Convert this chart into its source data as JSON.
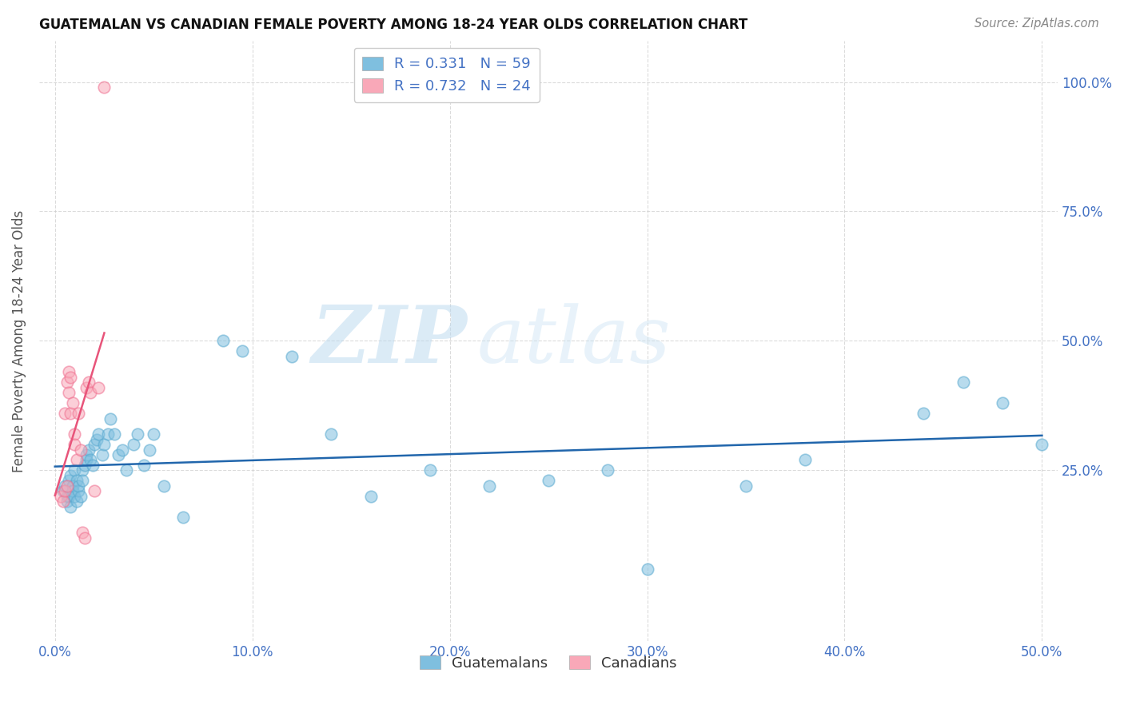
{
  "title": "GUATEMALAN VS CANADIAN FEMALE POVERTY AMONG 18-24 YEAR OLDS CORRELATION CHART",
  "source": "Source: ZipAtlas.com",
  "ylabel": "Female Poverty Among 18-24 Year Olds",
  "ytick_labels": [
    "100.0%",
    "75.0%",
    "50.0%",
    "25.0%"
  ],
  "ytick_values": [
    1.0,
    0.75,
    0.5,
    0.25
  ],
  "xtick_labels": [
    "0.0%",
    "10.0%",
    "20.0%",
    "30.0%",
    "40.0%",
    "50.0%"
  ],
  "xtick_values": [
    0.0,
    0.1,
    0.2,
    0.3,
    0.4,
    0.5
  ],
  "watermark_zip": "ZIP",
  "watermark_atlas": "atlas",
  "guatemalan_color": "#7fbfdf",
  "guatemalan_edge": "#5aaad0",
  "canadian_color": "#f9a8b8",
  "canadian_edge": "#f07090",
  "guatemalan_line_color": "#2166ac",
  "canadian_line_color": "#e8547a",
  "background_color": "#ffffff",
  "grid_color": "#cccccc",
  "guatemalans_x": [
    0.004,
    0.005,
    0.006,
    0.006,
    0.007,
    0.007,
    0.008,
    0.008,
    0.009,
    0.009,
    0.01,
    0.01,
    0.011,
    0.011,
    0.012,
    0.012,
    0.013,
    0.014,
    0.014,
    0.015,
    0.016,
    0.016,
    0.017,
    0.018,
    0.019,
    0.02,
    0.021,
    0.022,
    0.024,
    0.025,
    0.027,
    0.028,
    0.03,
    0.032,
    0.034,
    0.036,
    0.04,
    0.042,
    0.045,
    0.048,
    0.05,
    0.055,
    0.065,
    0.085,
    0.095,
    0.12,
    0.14,
    0.16,
    0.19,
    0.22,
    0.25,
    0.28,
    0.3,
    0.35,
    0.38,
    0.44,
    0.46,
    0.48,
    0.5
  ],
  "guatemalans_y": [
    0.21,
    0.22,
    0.2,
    0.19,
    0.23,
    0.2,
    0.18,
    0.24,
    0.22,
    0.21,
    0.25,
    0.2,
    0.19,
    0.23,
    0.21,
    0.22,
    0.2,
    0.25,
    0.23,
    0.26,
    0.27,
    0.28,
    0.29,
    0.27,
    0.26,
    0.3,
    0.31,
    0.32,
    0.28,
    0.3,
    0.32,
    0.35,
    0.32,
    0.28,
    0.29,
    0.25,
    0.3,
    0.32,
    0.26,
    0.29,
    0.32,
    0.22,
    0.16,
    0.5,
    0.48,
    0.47,
    0.32,
    0.2,
    0.25,
    0.22,
    0.23,
    0.25,
    0.06,
    0.22,
    0.27,
    0.36,
    0.42,
    0.38,
    0.3
  ],
  "canadians_x": [
    0.003,
    0.004,
    0.005,
    0.005,
    0.006,
    0.006,
    0.007,
    0.007,
    0.008,
    0.008,
    0.009,
    0.01,
    0.01,
    0.011,
    0.012,
    0.013,
    0.014,
    0.015,
    0.016,
    0.017,
    0.018,
    0.02,
    0.022,
    0.025
  ],
  "canadians_y": [
    0.2,
    0.19,
    0.21,
    0.36,
    0.22,
    0.42,
    0.4,
    0.44,
    0.43,
    0.36,
    0.38,
    0.32,
    0.3,
    0.27,
    0.36,
    0.29,
    0.13,
    0.12,
    0.41,
    0.42,
    0.4,
    0.21,
    0.41,
    0.99
  ]
}
